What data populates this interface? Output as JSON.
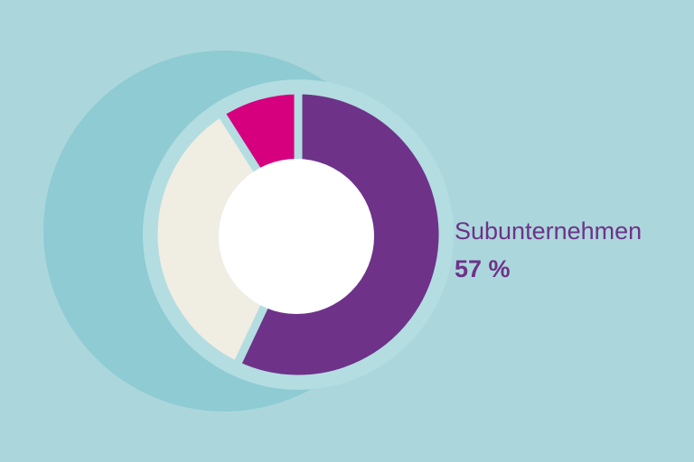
{
  "chart_data": {
    "type": "donut",
    "categories": [
      "Subunternehmen",
      null,
      null
    ],
    "values": [
      57,
      34,
      9
    ],
    "value_labels": [
      "57 %",
      null,
      null
    ],
    "colors": [
      "#6e3289",
      "#f0ede3",
      "#d6007f"
    ]
  }
}
